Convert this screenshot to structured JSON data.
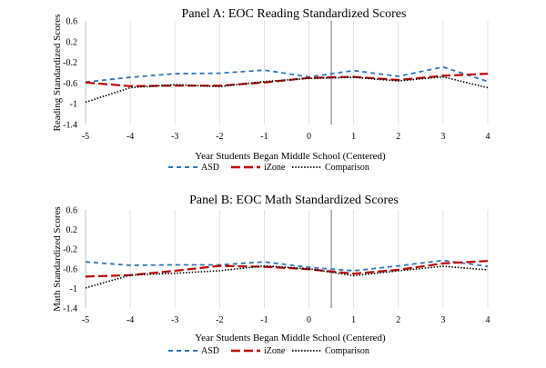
{
  "chart_data": [
    {
      "type": "line",
      "title": "Panel A: EOC Reading Standardized Scores",
      "xlabel": "Year Students Began Middle School (Centered)",
      "ylabel": "Reading Standardized Scores",
      "x": [
        -5,
        -4,
        -3,
        -2,
        -1,
        0,
        1,
        2,
        3,
        4
      ],
      "xlim": [
        -5,
        4
      ],
      "ylim": [
        -1.4,
        0.6
      ],
      "yticks": [
        0.6,
        0.2,
        -0.2,
        -0.6,
        -1,
        -1.4
      ],
      "ytick_labels": [
        "0.6",
        "0.2",
        "-0.2",
        "-0.6",
        "-1",
        "-1.4"
      ],
      "xtick_labels": [
        "-5",
        "-4",
        "-3",
        "-2",
        "-1",
        "0",
        "1",
        "2",
        "3",
        "4"
      ],
      "vline_x": 0.5,
      "grid": "vertical",
      "legend": "bottom",
      "series": [
        {
          "name": "ASD",
          "color": "#2e75b6",
          "dash": "dash",
          "values": [
            -0.58,
            -0.49,
            -0.42,
            -0.41,
            -0.35,
            -0.48,
            -0.36,
            -0.47,
            -0.29,
            -0.57
          ]
        },
        {
          "name": "iZone",
          "color": "#c00000",
          "dash": "longdash",
          "values": [
            -0.59,
            -0.66,
            -0.65,
            -0.65,
            -0.59,
            -0.5,
            -0.48,
            -0.54,
            -0.46,
            -0.42
          ]
        },
        {
          "name": "Comparison",
          "color": "#000000",
          "dash": "dot",
          "values": [
            -0.97,
            -0.69,
            -0.63,
            -0.67,
            -0.57,
            -0.51,
            -0.49,
            -0.56,
            -0.48,
            -0.69
          ]
        }
      ]
    },
    {
      "type": "line",
      "title": "Panel B: EOC Math Standardized Scores",
      "xlabel": "Year Students Began Middle School (Centered)",
      "ylabel": "Math Standardized Scores",
      "x": [
        -5,
        -4,
        -3,
        -2,
        -1,
        0,
        1,
        2,
        3,
        4
      ],
      "xlim": [
        -5,
        4
      ],
      "ylim": [
        -1.4,
        0.6
      ],
      "yticks": [
        0.6,
        0.2,
        -0.2,
        -0.6,
        -1,
        -1.4
      ],
      "ytick_labels": [
        "0.6",
        "0.2",
        "-0.2",
        "-0.6",
        "-1",
        "-1.4"
      ],
      "xtick_labels": [
        "-5",
        "-4",
        "-3",
        "-2",
        "-1",
        "0",
        "1",
        "2",
        "3",
        "4"
      ],
      "vline_x": 0.5,
      "grid": "vertical",
      "legend": "bottom",
      "series": [
        {
          "name": "ASD",
          "color": "#2e75b6",
          "dash": "dash",
          "values": [
            -0.46,
            -0.53,
            -0.52,
            -0.52,
            -0.46,
            -0.57,
            -0.64,
            -0.54,
            -0.43,
            -0.55
          ]
        },
        {
          "name": "iZone",
          "color": "#c00000",
          "dash": "longdash",
          "values": [
            -0.76,
            -0.73,
            -0.64,
            -0.54,
            -0.56,
            -0.61,
            -0.7,
            -0.62,
            -0.49,
            -0.44
          ]
        },
        {
          "name": "Comparison",
          "color": "#000000",
          "dash": "dot",
          "values": [
            -0.99,
            -0.73,
            -0.69,
            -0.64,
            -0.54,
            -0.6,
            -0.74,
            -0.64,
            -0.55,
            -0.62
          ]
        }
      ]
    }
  ]
}
